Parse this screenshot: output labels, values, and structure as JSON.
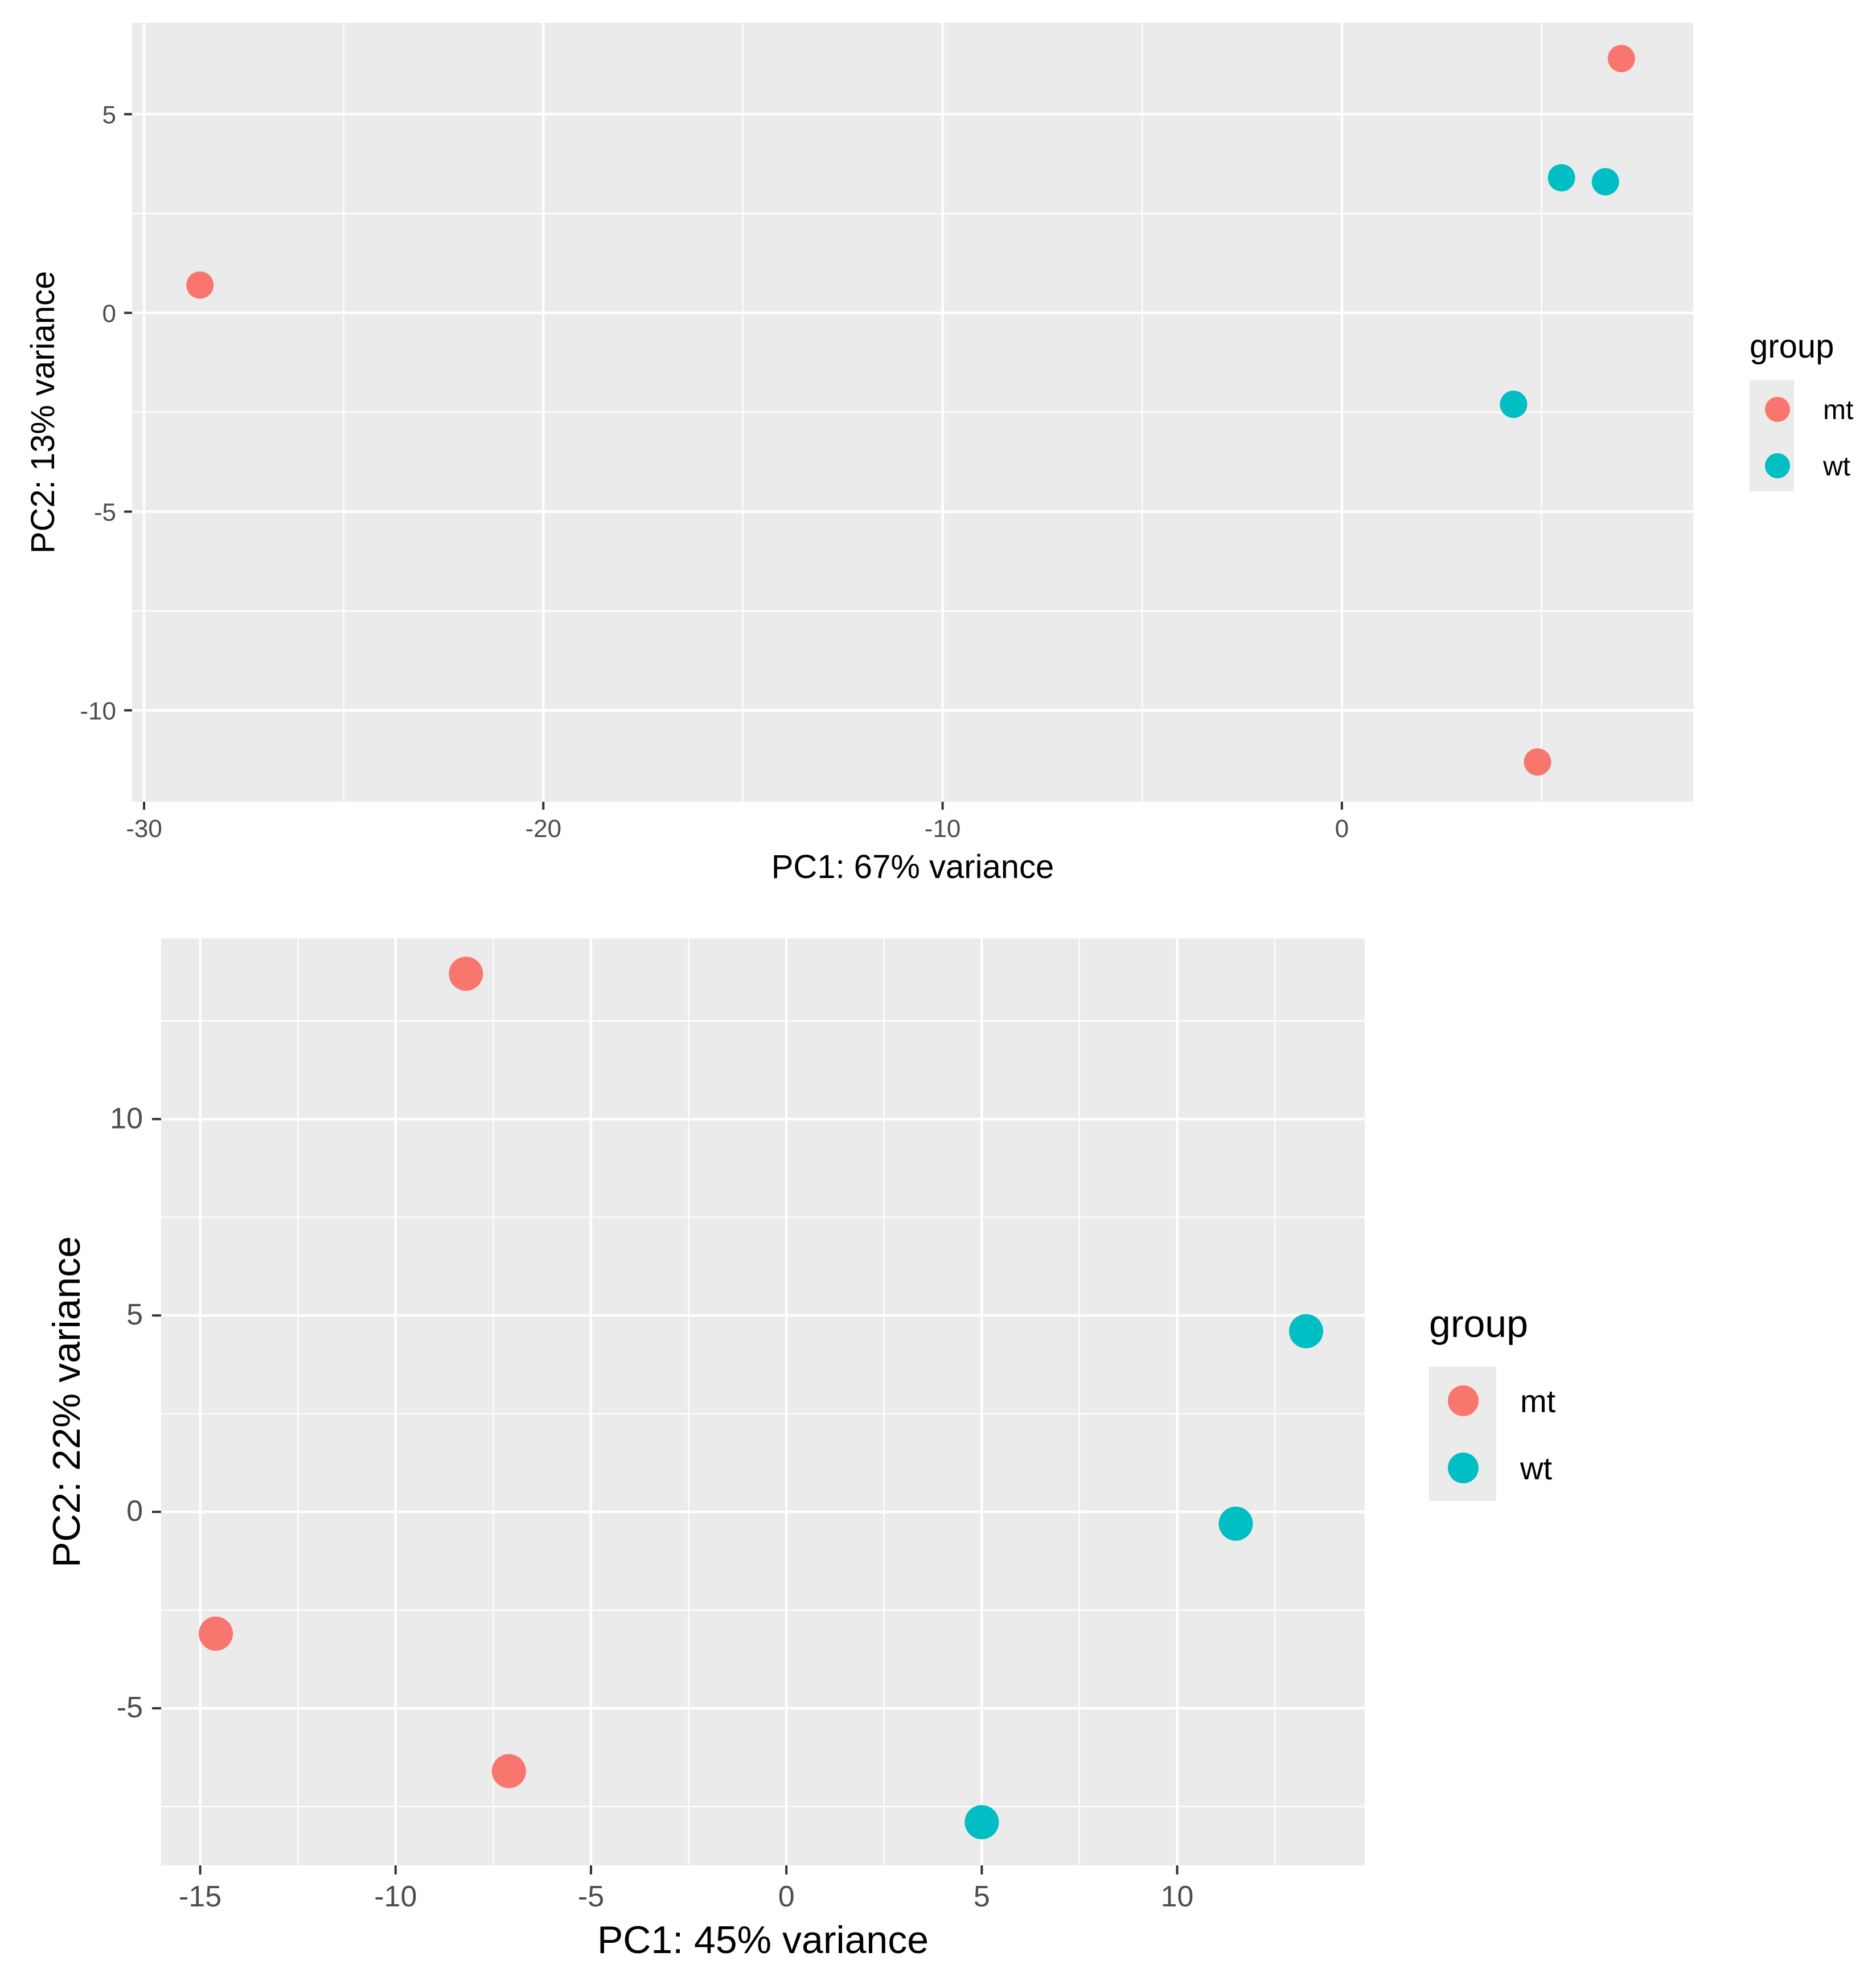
{
  "chart_data": [
    {
      "type": "scatter",
      "title": "",
      "xlabel": "PC1: 67% variance",
      "ylabel": "PC2: 13% variance",
      "xlim": [
        -30.3,
        8.8
      ],
      "ylim": [
        -12.3,
        7.3
      ],
      "xticks": [
        -30,
        -20,
        -10,
        0
      ],
      "yticks": [
        -10,
        -5,
        0,
        5
      ],
      "xtick_labels": [
        "-30",
        "-20",
        "-10",
        "0"
      ],
      "ytick_labels": [
        "-10",
        "-5",
        "0",
        "5"
      ],
      "grid": true,
      "legend": {
        "title": "group",
        "position": "right",
        "entries": [
          "mt",
          "wt"
        ]
      },
      "series": [
        {
          "name": "mt",
          "color": "#F8766D",
          "points": [
            [
              -28.6,
              0.7
            ],
            [
              7.0,
              6.4
            ],
            [
              4.9,
              -11.3
            ]
          ]
        },
        {
          "name": "wt",
          "color": "#00BFC4",
          "points": [
            [
              5.5,
              3.4
            ],
            [
              6.6,
              3.3
            ],
            [
              4.3,
              -2.3
            ]
          ]
        }
      ]
    },
    {
      "type": "scatter",
      "title": "",
      "xlabel": "PC1: 45% variance",
      "ylabel": "PC2: 22% variance",
      "xlim": [
        -16.0,
        14.8
      ],
      "ylim": [
        -9.0,
        14.6
      ],
      "xticks": [
        -15,
        -10,
        -5,
        0,
        5,
        10
      ],
      "yticks": [
        -5,
        0,
        5,
        10
      ],
      "xtick_labels": [
        "-15",
        "-10",
        "-5",
        "0",
        "5",
        "10"
      ],
      "ytick_labels": [
        "-5",
        "0",
        "5",
        "10"
      ],
      "grid": true,
      "legend": {
        "title": "group",
        "position": "right",
        "entries": [
          "mt",
          "wt"
        ]
      },
      "series": [
        {
          "name": "mt",
          "color": "#F8766D",
          "points": [
            [
              -8.2,
              13.7
            ],
            [
              -14.6,
              -3.1
            ],
            [
              -7.1,
              -6.6
            ]
          ]
        },
        {
          "name": "wt",
          "color": "#00BFC4",
          "points": [
            [
              13.3,
              4.6
            ],
            [
              11.5,
              -0.3
            ],
            [
              5.0,
              -7.9
            ]
          ]
        }
      ]
    }
  ]
}
